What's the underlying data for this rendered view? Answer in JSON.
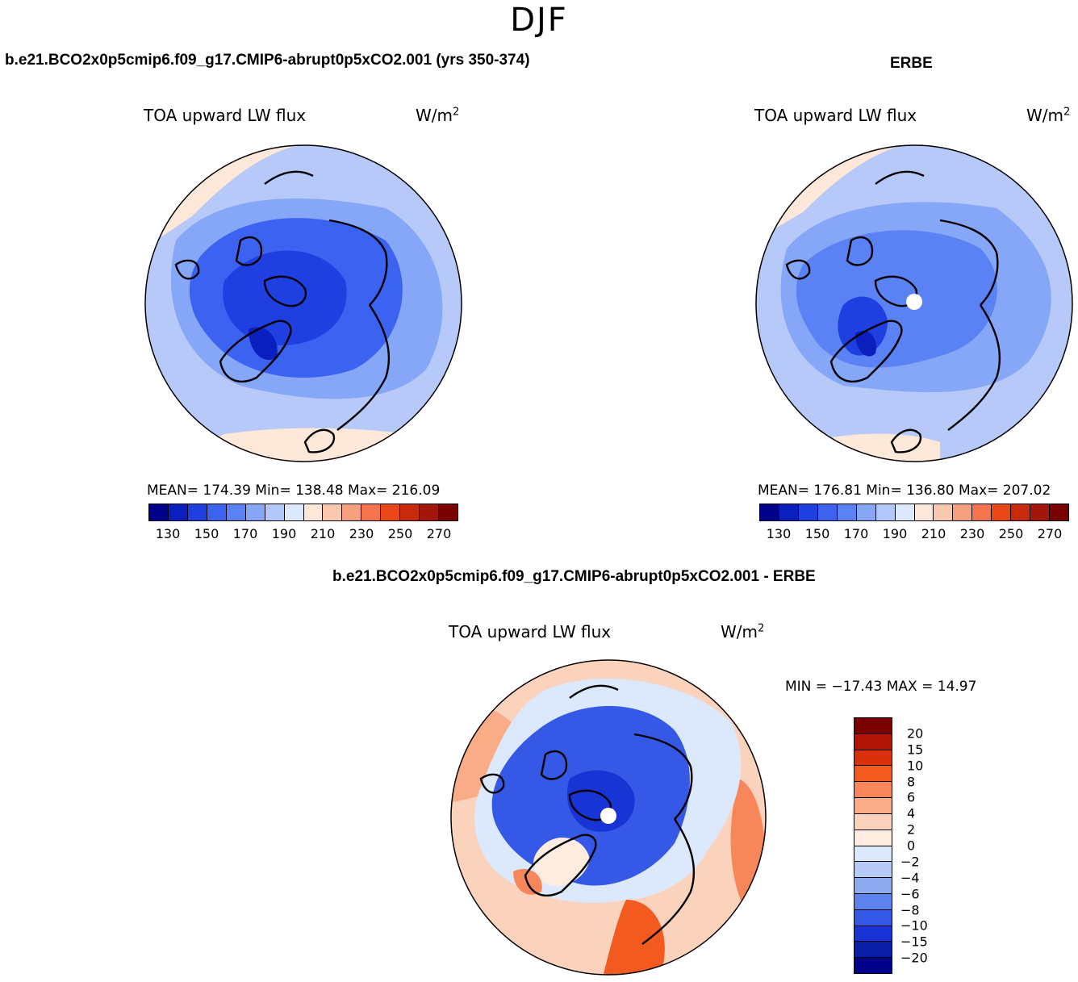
{
  "figure": {
    "season": "DJF"
  },
  "chart_data": [
    {
      "type": "heatmap",
      "projection": "north-polar-stereographic",
      "panel": "model",
      "case_title": "b.e21.BCO2x0p5cmip6.f09_g17.CMIP6-abrupt0p5xCO2.001 (yrs 350-374)",
      "variable": "TOA upward LW flux",
      "units_base": "W/m",
      "units_exp": "2",
      "stats_text": "MEAN= 174.39   Min= 138.48   Max= 216.09",
      "mean": 174.39,
      "min": 138.48,
      "max": 216.09,
      "colorbar": {
        "colors": [
          "#00008b",
          "#0a1fbe",
          "#1f3fe0",
          "#3b62f0",
          "#5b82f4",
          "#86a6f8",
          "#b2c8fb",
          "#dde9fc",
          "#fde7d9",
          "#fac8af",
          "#f7a07e",
          "#f5734d",
          "#ea4719",
          "#c92a0c",
          "#a3160a",
          "#7a0000"
        ],
        "tick_labels": [
          "130",
          "150",
          "170",
          "190",
          "210",
          "230",
          "250",
          "270"
        ]
      }
    },
    {
      "type": "heatmap",
      "projection": "north-polar-stereographic",
      "panel": "observations",
      "case_title": "ERBE",
      "variable": "TOA upward LW flux",
      "units_base": "W/m",
      "units_exp": "2",
      "stats_text": "MEAN= 176.81   Min= 136.80   Max= 207.02",
      "mean": 176.81,
      "min": 136.8,
      "max": 207.02,
      "colorbar": {
        "colors": [
          "#00008b",
          "#0a1fbe",
          "#1f3fe0",
          "#3b62f0",
          "#5b82f4",
          "#86a6f8",
          "#b2c8fb",
          "#dde9fc",
          "#fde7d9",
          "#fac8af",
          "#f7a07e",
          "#f5734d",
          "#ea4719",
          "#c92a0c",
          "#a3160a",
          "#7a0000"
        ],
        "tick_labels": [
          "130",
          "150",
          "170",
          "190",
          "210",
          "230",
          "250",
          "270"
        ]
      }
    },
    {
      "type": "heatmap",
      "projection": "north-polar-stereographic",
      "panel": "difference",
      "case_title": "b.e21.BCO2x0p5cmip6.f09_g17.CMIP6-abrupt0p5xCO2.001 - ERBE",
      "variable": "TOA upward LW flux",
      "units_base": "W/m",
      "units_exp": "2",
      "stats_text": "MIN = −17.43 MAX =  14.97",
      "min": -17.43,
      "max": 14.97,
      "colorbar": {
        "colors": [
          "#7a0000",
          "#b01505",
          "#d8300a",
          "#f25a1f",
          "#f7875a",
          "#f9ac86",
          "#fbd3bd",
          "#fdecdf",
          "#dce8fb",
          "#b6cbf7",
          "#8eabf2",
          "#5d82ec",
          "#3559e6",
          "#1834d4",
          "#0a1ea8",
          "#00008b"
        ],
        "tick_labels": [
          "20",
          "15",
          "10",
          "8",
          "6",
          "4",
          "2",
          "0",
          "−2",
          "−4",
          "−6",
          "−8",
          "−10",
          "−15",
          "−20"
        ]
      }
    }
  ]
}
